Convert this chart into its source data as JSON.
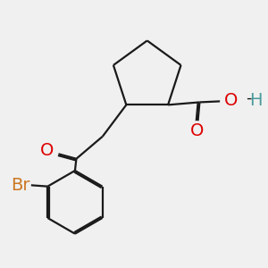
{
  "bg_color": "#f0f0f0",
  "bond_color": "#1a1a1a",
  "bond_width": 1.6,
  "dbo": 0.06,
  "O_color": "#dd0000",
  "Br_color": "#cc7722",
  "H_color": "#4a9a9a",
  "font_size": 14,
  "fig_size": [
    3.0,
    3.0
  ],
  "dpi": 100,
  "xlim": [
    0.0,
    10.0
  ],
  "ylim": [
    0.0,
    10.0
  ]
}
